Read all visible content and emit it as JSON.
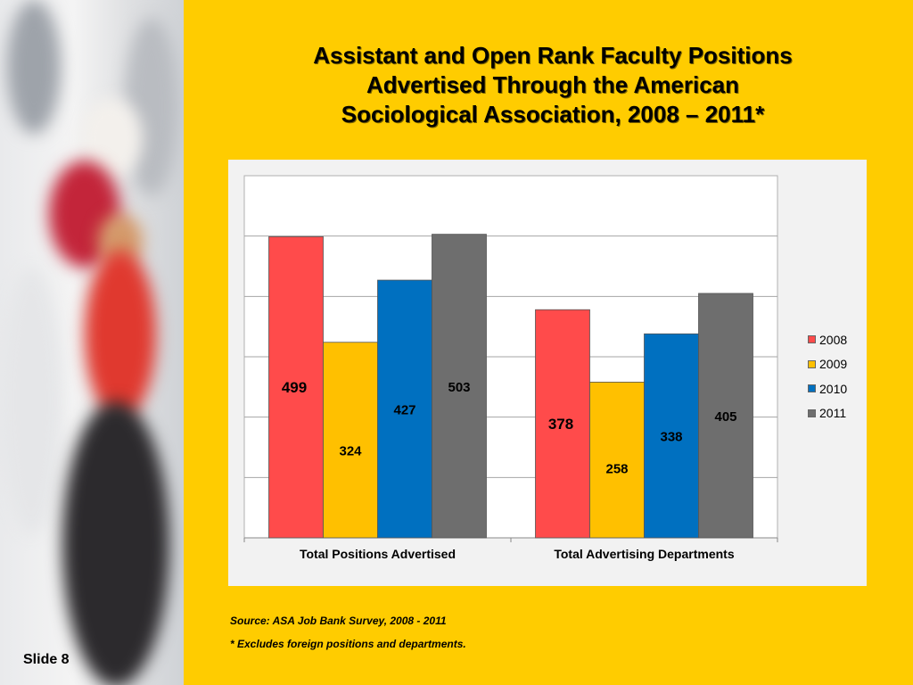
{
  "slide": {
    "title_lines": [
      "Assistant and Open Rank Faculty Positions",
      "Advertised Through the American",
      "Sociological Association, 2008 – 2011*"
    ],
    "slide_number": "Slide 8",
    "source": "Source: ASA Job Bank Survey, 2008 - 2011",
    "note": "* Excludes foreign positions and departments."
  },
  "colors": {
    "background": "#ffcc00",
    "panel": "#f2f2f2"
  },
  "chart_data": {
    "type": "bar",
    "title": "Assistant and Open Rank Faculty Positions Advertised Through the American Sociological Association, 2008 – 2011*",
    "categories": [
      "Total Positions Advertised",
      "Total Advertising Departments"
    ],
    "series": [
      {
        "name": "2008",
        "values": [
          499,
          378
        ],
        "color": "#ff4b4b"
      },
      {
        "name": "2009",
        "values": [
          324,
          258
        ],
        "color": "#ffc000"
      },
      {
        "name": "2010",
        "values": [
          427,
          338
        ],
        "color": "#0070c0"
      },
      {
        "name": "2011",
        "values": [
          503,
          405
        ],
        "color": "#6e6e6e"
      }
    ],
    "ylim": [
      0,
      600
    ],
    "grid": true,
    "legend": "right",
    "y_tick_labels_shown": false
  }
}
